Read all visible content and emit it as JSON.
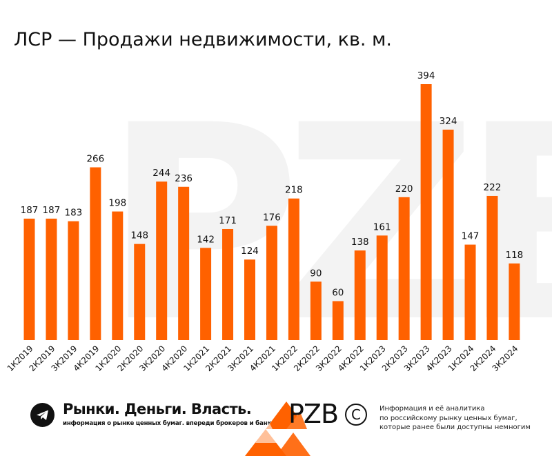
{
  "title": "ЛСР — Продажи недвижимости, кв. м.",
  "watermark": "PZB",
  "chart_data": {
    "type": "bar",
    "title": "ЛСР — Продажи недвижимости, кв. м.",
    "xlabel": "",
    "ylabel": "",
    "categories": [
      "1К2019",
      "2К2019",
      "3К2019",
      "4К2019",
      "1К2020",
      "2К2020",
      "3К2020",
      "4К2020",
      "1К2021",
      "2К2021",
      "3К2021",
      "4К2021",
      "1К2022",
      "2К2022",
      "3К2022",
      "4К2022",
      "1К2023",
      "2К2023",
      "3К2023",
      "4К2023",
      "1К2024",
      "2К2024",
      "3К2024"
    ],
    "values": [
      187,
      187,
      183,
      266,
      198,
      148,
      244,
      236,
      142,
      171,
      124,
      176,
      218,
      90,
      60,
      138,
      161,
      220,
      394,
      324,
      147,
      222,
      118
    ],
    "ylim": [
      0,
      394
    ],
    "grid": false,
    "legend": "none",
    "bar_color": "#FF6100"
  },
  "footer": {
    "brand_title": "Рынки. Деньги. Власть.",
    "brand_subtitle": "информация о рынке ценных бумаг. впереди брокеров и банков.",
    "logo_text": "PZB",
    "copyright_symbol": "C",
    "info_lines": [
      "Информация и её аналитика",
      "по российскому рынку ценных бумаг,",
      "которые ранее были доступны немногим"
    ],
    "icon": "telegram-icon"
  },
  "colors": {
    "accent": "#FF6100",
    "text": "#111111",
    "background": "#FFFFFF"
  }
}
